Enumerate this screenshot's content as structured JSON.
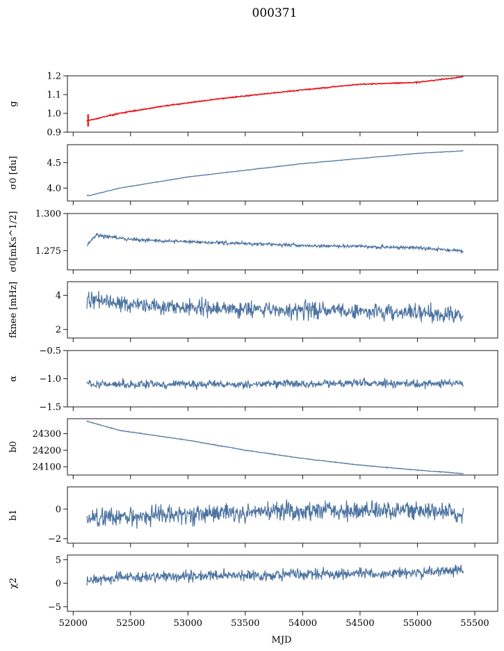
{
  "chart_data": {
    "type": "line",
    "title": "000371",
    "xlabel": "MJD",
    "xlim": [
      51950,
      55700
    ],
    "xticks": [
      52000,
      52500,
      53000,
      53500,
      54000,
      54500,
      55000,
      55500
    ],
    "line_color": "#4c72a0",
    "highlight_color": "#ff0000",
    "x_start": 52120,
    "x_end": 55400,
    "n_points": 800,
    "panels": [
      {
        "name": "g",
        "ylabel": "g",
        "ylim": [
          0.9,
          1.2
        ],
        "yticks": [
          0.9,
          1.0,
          1.1,
          1.2
        ],
        "ytick_labels": [
          "0.9",
          "1.0",
          "1.1",
          "1.2"
        ],
        "trend": [
          [
            52120,
            0.96
          ],
          [
            52400,
            1.0
          ],
          [
            52800,
            1.04
          ],
          [
            53300,
            1.08
          ],
          [
            54000,
            1.125
          ],
          [
            54500,
            1.155
          ],
          [
            55000,
            1.165
          ],
          [
            55400,
            1.195
          ]
        ],
        "noise": 0.002,
        "overlay": "red",
        "outlier": {
          "x": 52130,
          "low": 0.93,
          "high": 0.995
        }
      },
      {
        "name": "sigma0",
        "ylabel": "σ0 [du]",
        "ylim": [
          3.75,
          4.85
        ],
        "yticks": [
          4.0,
          4.5
        ],
        "ytick_labels": [
          "4.0",
          "4.5"
        ],
        "trend": [
          [
            52150,
            3.86
          ],
          [
            52400,
            4.0
          ],
          [
            53000,
            4.22
          ],
          [
            54000,
            4.48
          ],
          [
            55000,
            4.68
          ],
          [
            55400,
            4.73
          ]
        ],
        "noise": 0.004
      },
      {
        "name": "sigma0-mks",
        "ylabel": "σ0[mKs^1/2]",
        "ylim": [
          1.262,
          1.3
        ],
        "yticks": [
          1.275,
          1.3
        ],
        "ytick_labels": [
          "1.275",
          "1.300"
        ],
        "trend": [
          [
            52120,
            1.2785
          ],
          [
            52200,
            1.2855
          ],
          [
            52500,
            1.2825
          ],
          [
            53000,
            1.281
          ],
          [
            54000,
            1.2785
          ],
          [
            55000,
            1.277
          ],
          [
            55400,
            1.2745
          ]
        ],
        "noise": 0.0008
      },
      {
        "name": "fknee",
        "ylabel": "fknee [mHz]",
        "ylim": [
          1.5,
          4.8
        ],
        "yticks": [
          2,
          4
        ],
        "ytick_labels": [
          "2",
          "4"
        ],
        "trend": [
          [
            52120,
            3.8
          ],
          [
            52500,
            3.5
          ],
          [
            53000,
            3.3
          ],
          [
            54000,
            3.1
          ],
          [
            55000,
            3.0
          ],
          [
            55400,
            2.9
          ]
        ],
        "noise": 0.35
      },
      {
        "name": "alpha",
        "ylabel": "α",
        "ylim": [
          -1.5,
          -0.5
        ],
        "yticks": [
          -1.5,
          -1.0,
          -0.5
        ],
        "ytick_labels": [
          "−1.5",
          "−1.0",
          "−0.5"
        ],
        "trend": [
          [
            52120,
            -1.1
          ],
          [
            55400,
            -1.08
          ]
        ],
        "noise": 0.05
      },
      {
        "name": "b0",
        "ylabel": "b0",
        "ylim": [
          24050,
          24390
        ],
        "yticks": [
          24100,
          24200,
          24300
        ],
        "ytick_labels": [
          "24100",
          "24200",
          "24300"
        ],
        "trend": [
          [
            52120,
            24375
          ],
          [
            52400,
            24320
          ],
          [
            53000,
            24260
          ],
          [
            53500,
            24200
          ],
          [
            54000,
            24150
          ],
          [
            54500,
            24110
          ],
          [
            55000,
            24080
          ],
          [
            55400,
            24058
          ]
        ],
        "noise": 1.5
      },
      {
        "name": "b1",
        "ylabel": "b1",
        "ylim": [
          -2.3,
          1.5
        ],
        "yticks": [
          -2,
          0
        ],
        "ytick_labels": [
          "−2",
          "0"
        ],
        "trend": [
          [
            52120,
            -0.6
          ],
          [
            53000,
            -0.4
          ],
          [
            54000,
            -0.1
          ],
          [
            55000,
            -0.1
          ],
          [
            55400,
            -0.3
          ]
        ],
        "noise": 0.45
      },
      {
        "name": "chi2",
        "ylabel": "χ2",
        "ylim": [
          -6,
          6
        ],
        "yticks": [
          -5,
          0,
          5
        ],
        "ytick_labels": [
          "−5",
          "0",
          "5"
        ],
        "trend": [
          [
            52120,
            0.3
          ],
          [
            52400,
            1.3
          ],
          [
            53000,
            1.5
          ],
          [
            54000,
            1.8
          ],
          [
            55000,
            2.2
          ],
          [
            55400,
            2.8
          ]
        ],
        "noise": 0.8
      }
    ]
  }
}
